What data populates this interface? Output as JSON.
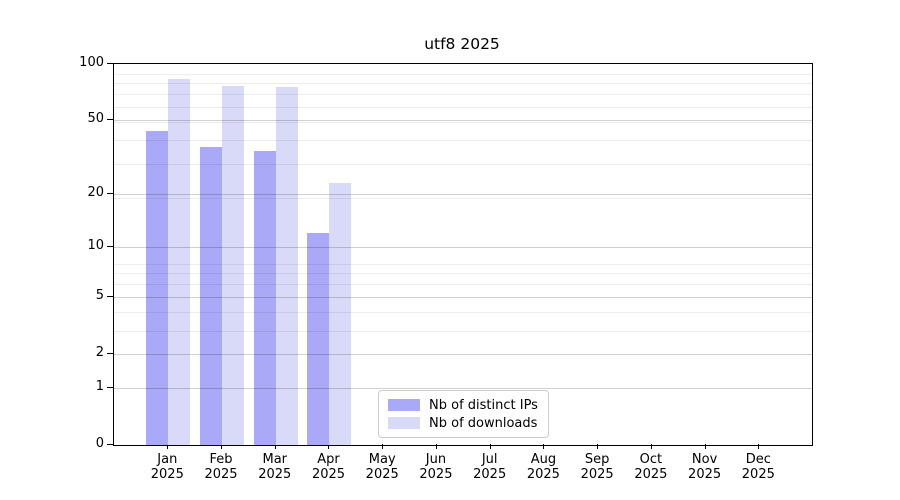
{
  "chart_data": {
    "type": "bar",
    "title": "utf8 2025",
    "categories": [
      "Jan",
      "Feb",
      "Mar",
      "Apr",
      "May",
      "Jun",
      "Jul",
      "Aug",
      "Sep",
      "Oct",
      "Nov",
      "Dec"
    ],
    "x_tick_year": "2025",
    "series": [
      {
        "name": "Nb of distinct IPs",
        "color": "#a9a9f7",
        "values": [
          44,
          36,
          34,
          12,
          null,
          null,
          null,
          null,
          null,
          null,
          null,
          null
        ]
      },
      {
        "name": "Nb of downloads",
        "color": "#d9d9f8",
        "values": [
          83,
          76,
          75,
          23,
          null,
          null,
          null,
          null,
          null,
          null,
          null,
          null
        ]
      }
    ],
    "yscale": "log10(value+1)",
    "ylim": [
      0,
      100
    ],
    "y_major_ticks": [
      0,
      1,
      2,
      5,
      10,
      20,
      50,
      100
    ],
    "y_minor_gridlines": [
      3,
      4,
      6,
      7,
      8,
      19,
      29,
      39,
      49,
      59,
      69,
      79,
      89
    ],
    "grid": "on, drawn above bars",
    "legend_position": "lower center"
  },
  "colors": {
    "axis": "#000000",
    "major_grid": "rgba(0,0,0,0.18)",
    "minor_grid": "rgba(0,0,0,0.07)",
    "background": "#ffffff"
  }
}
